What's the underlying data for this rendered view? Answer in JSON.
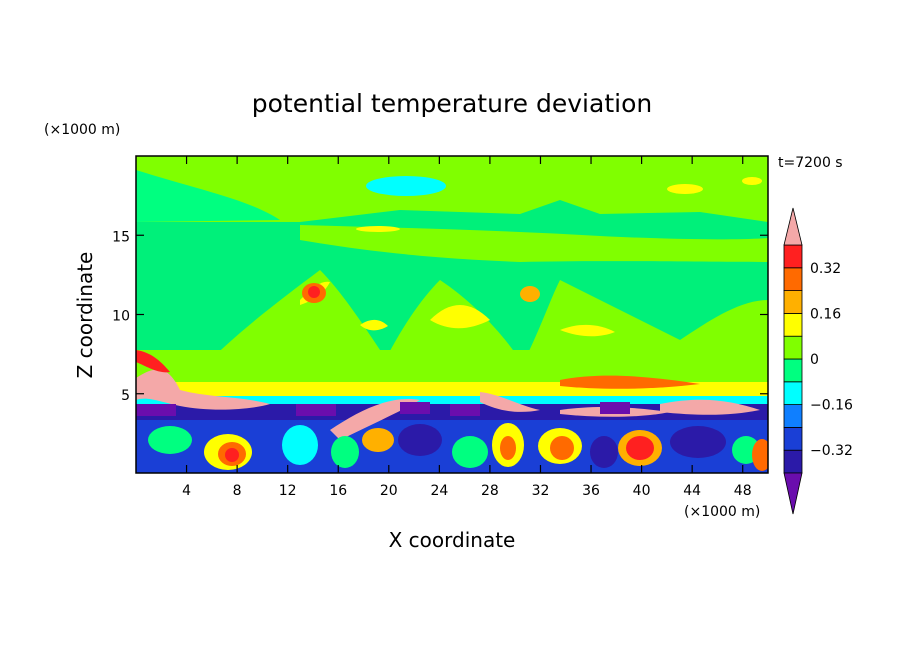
{
  "chart_data": {
    "type": "heatmap",
    "title": "potential temperature deviation",
    "xlabel": "X coordinate",
    "ylabel": "Z coordinate",
    "x_unit": "(×1000 m)",
    "y_unit": "(×1000 m)",
    "time_label": "t=7200 s",
    "xlim": [
      0,
      50
    ],
    "ylim": [
      0,
      20
    ],
    "x_ticks": [
      4,
      8,
      12,
      16,
      20,
      24,
      28,
      32,
      36,
      40,
      44,
      48
    ],
    "x_tick_labels": [
      "4",
      "8",
      "12",
      "16",
      "20",
      "24",
      "28",
      "32",
      "36",
      "40",
      "44",
      "48"
    ],
    "y_ticks": [
      5,
      10,
      15
    ],
    "y_tick_labels": [
      "5",
      "10",
      "15"
    ],
    "colorbar": {
      "levels": [
        -0.4,
        -0.32,
        -0.24,
        -0.16,
        -0.08,
        0,
        0.08,
        0.16,
        0.24,
        0.32,
        0.4
      ],
      "tick_values": [
        -0.32,
        -0.16,
        0,
        0.16,
        0.32
      ],
      "tick_labels": [
        "−0.32",
        "−0.16",
        "0",
        "0.16",
        "0.32"
      ],
      "colors": [
        "#6a0dad",
        "#2b1aa8",
        "#1a3fd6",
        "#0f7fff",
        "#00ffff",
        "#00ff80",
        "#80ff00",
        "#ffff00",
        "#ffb000",
        "#ff6a00",
        "#ff2020",
        "#f4a8a8"
      ]
    },
    "background_color": "#00f07a"
  }
}
